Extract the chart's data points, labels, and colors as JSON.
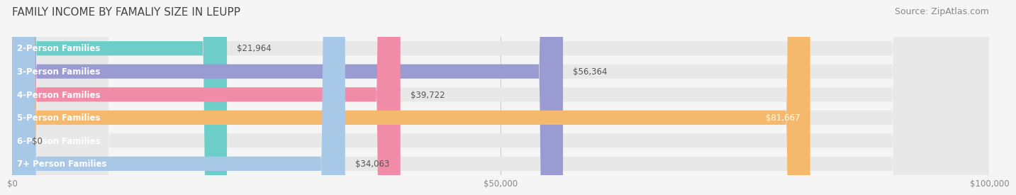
{
  "title": "FAMILY INCOME BY FAMALIY SIZE IN LEUPP",
  "source": "Source: ZipAtlas.com",
  "categories": [
    "2-Person Families",
    "3-Person Families",
    "4-Person Families",
    "5-Person Families",
    "6-Person Families",
    "7+ Person Families"
  ],
  "values": [
    21964,
    56364,
    39722,
    81667,
    0,
    34063
  ],
  "bar_colors": [
    "#6DCDC8",
    "#9B9BD4",
    "#F08CA8",
    "#F5B96E",
    "#F2AABB",
    "#A8C8E8"
  ],
  "label_colors": [
    "#555555",
    "#555555",
    "#555555",
    "#ffffff",
    "#555555",
    "#555555"
  ],
  "x_ticks": [
    0,
    50000,
    100000
  ],
  "x_tick_labels": [
    "$0",
    "$50,000",
    "$100,000"
  ],
  "xlim": [
    0,
    100000
  ],
  "value_labels": [
    "$21,964",
    "$56,364",
    "$39,722",
    "$81,667",
    "$0",
    "$34,063"
  ],
  "bar_height": 0.62,
  "background_color": "#f5f5f5",
  "bar_bg_color": "#e8e8e8",
  "title_fontsize": 11,
  "source_fontsize": 9,
  "label_fontsize": 8.5,
  "value_fontsize": 8.5
}
